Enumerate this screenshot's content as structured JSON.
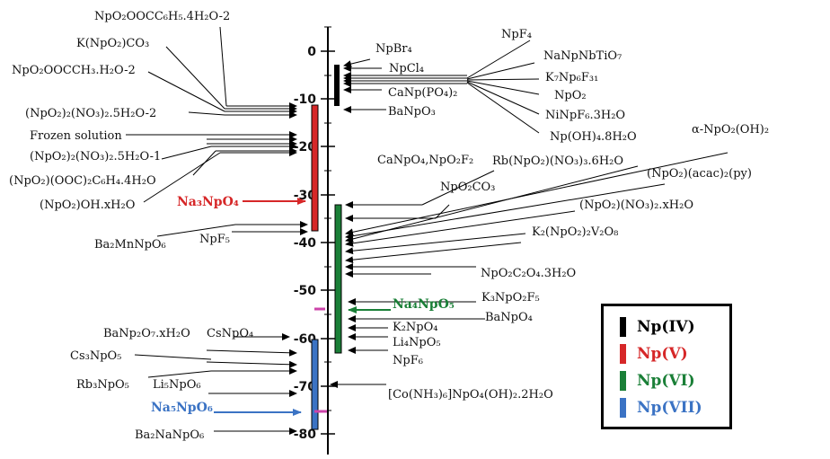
{
  "axis": {
    "ticks": [
      "0",
      "-10",
      "-20",
      "-30",
      "-40",
      "-50",
      "-60",
      "-70",
      "-80"
    ]
  },
  "colors": {
    "np4": "#000000",
    "np5": "#d62728",
    "np6": "#1a7f37",
    "np7": "#3b73c4"
  },
  "labels_left": {
    "l1": "NpO₂OOCC₆H₅.4H₂O-2",
    "l2": "K(NpO₂)CO₃",
    "l3": "NpO₂OOCCH₃.H₂O-2",
    "l4": "(NpO₂)₂(NO₃)₂.5H₂O-2",
    "l5": "Frozen solution",
    "l6": "(NpO₂)₂(NO₃)₂.5H₂O-1",
    "l7": "(NpO₂)(OOC)₂C₆H₄.4H₂O",
    "l8": "(NpO₂)OH.xH₂O",
    "l9": "Na₃NpO₄",
    "l10": "Ba₂MnNpO₆",
    "l11": "NpF₅",
    "l12": "BaNp₂O₇.xH₂O",
    "l13": "CsNpO₄",
    "l14": "Cs₃NpO₅",
    "l15": "Rb₃NpO₅",
    "l16": "Li₅NpO₆",
    "l17": "Na₅NpO₆",
    "l18": "Ba₂NaNpO₆"
  },
  "labels_right": {
    "r1": "NpBr₄",
    "r2": "NpCl₄",
    "r3": "CaNp(PO₄)₂",
    "r4": "BaNpO₃",
    "r5": "NpF₄",
    "r6": "NaNpNbTiO₇",
    "r7": "K₇Np₆F₃₁",
    "r8": "NpO₂",
    "r9": "NiNpF₆.3H₂O",
    "r10": "Np(OH)₄.8H₂O",
    "r11": "α-NpO₂(OH)₂",
    "r12": "CaNpO₄,NpO₂F₂",
    "r13": "Rb(NpO₂)(NO₃)₃.6H₂O",
    "r14": "(NpO₂)(acac)₂(py)",
    "r15": "NpO₂CO₃",
    "r16": "(NpO₂)(NO₃)₂.xH₂O",
    "r17": "K₂(NpO₂)₂V₂O₈",
    "r18": "NpO₂C₂O₄.3H₂O",
    "r19": "K₃NpO₂F₅",
    "r20": "Na₄NpO₅",
    "r21": "BaNpO₄",
    "r22": "K₂NpO₄",
    "r23": "Li₄NpO₅",
    "r24": "NpF₆",
    "r25": "[Co(NH₃)₆]NpO₄(OH)₂.2H₂O"
  },
  "legend": {
    "np4": "Np(IV)",
    "np5": "Np(V)",
    "np6": "Np(VI)",
    "np7": "Np(VII)"
  }
}
